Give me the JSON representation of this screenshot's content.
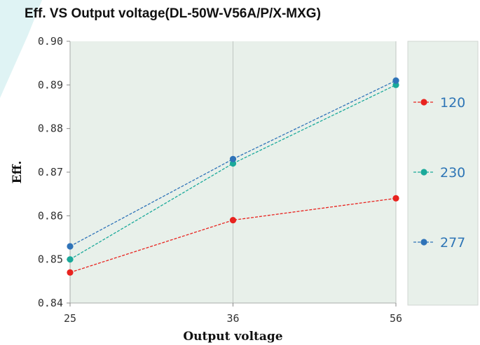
{
  "chart_data": {
    "type": "line",
    "title": "Eff. VS Output voltage(DL-50W-V56A/P/X-MXG)",
    "xlabel": "Output voltage",
    "ylabel": "Eff.",
    "categories": [
      "25",
      "36",
      "56"
    ],
    "x": [
      25,
      36,
      56
    ],
    "ylim": [
      0.84,
      0.9
    ],
    "yticks": [
      "0.84",
      "0.85",
      "0.86",
      "0.87",
      "0.88",
      "0.89",
      "0.90"
    ],
    "grid": "vertical",
    "legend_position": "right",
    "series": [
      {
        "name": "120",
        "values": [
          0.847,
          0.859,
          0.864
        ],
        "color": "#e8231f"
      },
      {
        "name": "230",
        "values": [
          0.85,
          0.872,
          0.89
        ],
        "color": "#1aa99a"
      },
      {
        "name": "277",
        "values": [
          0.853,
          0.873,
          0.891
        ],
        "color": "#2f73b8"
      }
    ],
    "plot_background": "#e8f0ea",
    "legend_background": "#e8f0ea"
  }
}
